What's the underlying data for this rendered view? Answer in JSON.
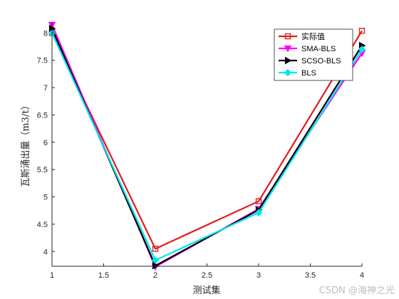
{
  "chart_data": {
    "type": "line",
    "x": [
      1,
      2,
      3,
      4
    ],
    "xticks": [
      "1",
      "1.5",
      "2",
      "2.5",
      "3",
      "3.5",
      "4"
    ],
    "yticks": [
      "4",
      "4.5",
      "5",
      "5.5",
      "6",
      "6.5",
      "7",
      "7.5",
      "8"
    ],
    "xlabel": "测试集",
    "ylabel": "瓦斯涌出量（m3/t）",
    "xlim": [
      1,
      4
    ],
    "ylim": [
      3.73,
      8.2
    ],
    "grid": false,
    "legend_position": "top-right",
    "series": [
      {
        "name": "实际值",
        "color": "#e31a1c",
        "marker": "square",
        "values": [
          8.0,
          4.05,
          4.92,
          8.04
        ]
      },
      {
        "name": "SMA-BLS",
        "color": "#ff00ff",
        "marker": "triangle-down",
        "values": [
          8.15,
          3.72,
          4.78,
          7.63
        ]
      },
      {
        "name": "SCSO-BLS",
        "color": "#000000",
        "marker": "triangle-right",
        "values": [
          8.08,
          3.74,
          4.76,
          7.77
        ]
      },
      {
        "name": "BLS",
        "color": "#00e5ee",
        "marker": "diamond",
        "values": [
          8.0,
          3.84,
          4.71,
          7.7
        ]
      }
    ]
  },
  "watermark": "CSDN @海神之光"
}
